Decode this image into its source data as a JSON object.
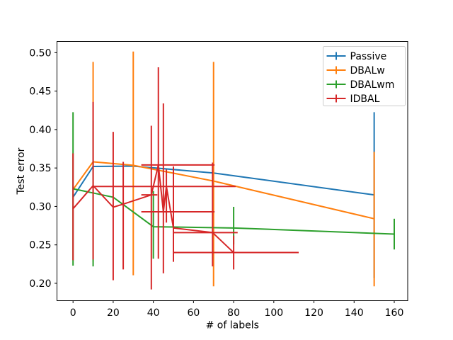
{
  "chart_data": {
    "type": "line",
    "title": "",
    "xlabel": "# of labels",
    "ylabel": "Test error",
    "grid": false,
    "legend_position": "upper right",
    "xlim": [
      -8.0,
      166.7
    ],
    "ylim": [
      0.1774,
      0.5146
    ],
    "x_ticks": [
      0,
      20,
      40,
      60,
      80,
      100,
      120,
      140,
      160
    ],
    "x_tick_labels": [
      "0",
      "20",
      "40",
      "60",
      "80",
      "100",
      "120",
      "140",
      "160"
    ],
    "y_ticks": [
      0.2,
      0.25,
      0.3,
      0.35,
      0.4,
      0.45,
      0.5
    ],
    "y_tick_labels": [
      "0.20",
      "0.25",
      "0.30",
      "0.35",
      "0.40",
      "0.45",
      "0.50"
    ],
    "series": [
      {
        "name": "Passive",
        "color": "#1f77b4",
        "points": [
          {
            "x": 0,
            "y": 0.312
          },
          {
            "x": 10,
            "y": 0.352
          },
          {
            "x": 30,
            "y": 0.3525
          },
          {
            "x": 70,
            "y": 0.3435
          },
          {
            "x": 150,
            "y": 0.315,
            "yerr": [
              0.207,
              0.4226
            ]
          }
        ]
      },
      {
        "name": "DBALw",
        "color": "#ff7f0e",
        "points": [
          {
            "x": 0,
            "y": 0.322
          },
          {
            "x": 10,
            "y": 0.358,
            "yerr": [
              0.228,
              0.488
            ]
          },
          {
            "x": 30,
            "y": 0.3535,
            "yerr": [
              0.2105,
              0.5015
            ]
          },
          {
            "x": 70,
            "y": 0.333,
            "yerr": [
              0.196,
              0.488
            ]
          },
          {
            "x": 150,
            "y": 0.284,
            "yerr": [
              0.196,
              0.371
            ]
          }
        ]
      },
      {
        "name": "DBALwm",
        "color": "#2ca02c",
        "points": [
          {
            "x": 0,
            "y": 0.323,
            "yerr": [
              0.223,
              0.4226
            ]
          },
          {
            "x": 10,
            "y": 0.3175,
            "yerr": [
              0.222,
              0.412
            ]
          },
          {
            "x": 20,
            "y": 0.312
          },
          {
            "x": 40,
            "y": 0.2736,
            "yerr": [
              0.232,
              0.32
            ]
          },
          {
            "x": 80,
            "y": 0.272,
            "yerr": [
              0.2505,
              0.2995
            ]
          },
          {
            "x": 160,
            "y": 0.264,
            "yerr": [
              0.244,
              0.284
            ]
          }
        ]
      },
      {
        "name": "IDBAL",
        "color": "#d62728",
        "points": [
          {
            "x": 0,
            "y": 0.297,
            "yerr": [
              0.23,
              0.369
            ]
          },
          {
            "x": 10,
            "y": 0.327,
            "yerr": [
              0.231,
              0.436
            ]
          },
          {
            "x": 20,
            "y": 0.299,
            "yerr": [
              0.204,
              0.397
            ]
          },
          {
            "x": 25,
            "y": 0.303,
            "yerr": [
              0.218,
              0.358
            ]
          },
          {
            "x": 39,
            "y": 0.315,
            "yerr": [
              0.192,
              0.405
            ],
            "xerr": [
              34,
              42
            ]
          },
          {
            "x": 42.5,
            "y": 0.354,
            "yerr": [
              0.232,
              0.481
            ],
            "xerr": [
              34,
              70.5
            ]
          },
          {
            "x": 45,
            "y": 0.293,
            "yerr": [
              0.213,
              0.434
            ],
            "xerr": [
              34,
              70.5
            ]
          },
          {
            "x": 46.5,
            "y": 0.326,
            "yerr": [
              0.279,
              0.348
            ],
            "xerr": [
              10,
              81
            ]
          },
          {
            "x": 50,
            "y": 0.272,
            "yerr": [
              0.228,
              0.352
            ]
          },
          {
            "x": 69.5,
            "y": 0.266,
            "yerr": [
              0.222,
              0.357
            ],
            "xerr": [
              50,
              82
            ]
          },
          {
            "x": 80,
            "y": 0.24,
            "yerr": [
              0.218,
              0.262
            ],
            "xerr": [
              50,
              112.4
            ]
          }
        ]
      }
    ]
  }
}
